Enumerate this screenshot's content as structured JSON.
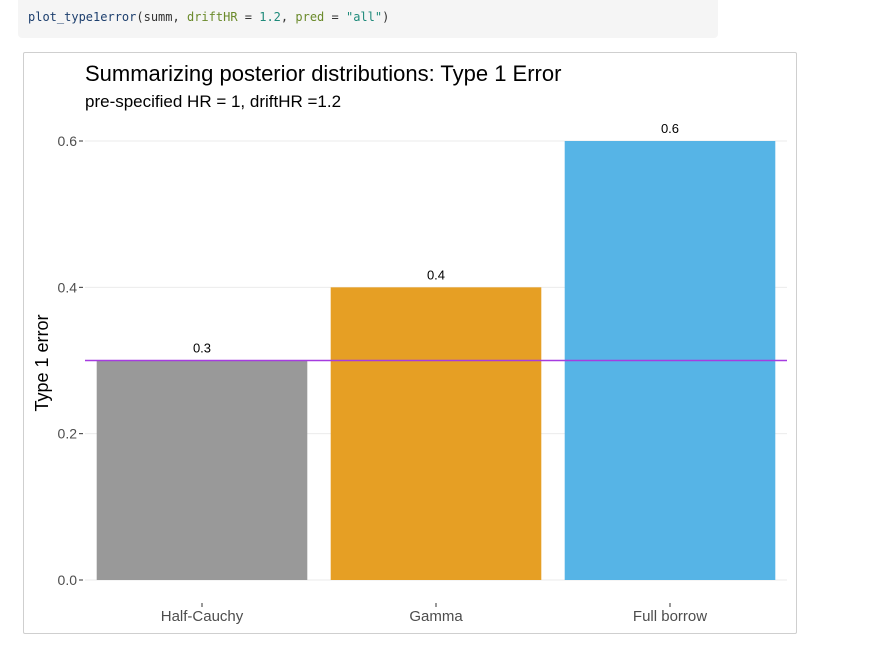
{
  "code": {
    "fn": "plot_type1error",
    "arg1": "summ",
    "arg2_name": "driftHR",
    "arg2_value": "1.2",
    "arg3_name": "pred",
    "arg3_value": "\"all\""
  },
  "chart_data": {
    "type": "bar",
    "title": "Summarizing posterior distributions: Type 1 Error",
    "subtitle": "pre-specified HR = 1, driftHR =1.2",
    "xlabel": "",
    "ylabel": "Type 1 error",
    "categories": [
      "Half-Cauchy",
      "Gamma",
      "Full borrow"
    ],
    "values": [
      0.3,
      0.4,
      0.6
    ],
    "data_labels": [
      "0.3",
      "0.4",
      "0.6"
    ],
    "colors": [
      "#999999",
      "#E69F24",
      "#56B4E6"
    ],
    "ylim": [
      0,
      0.6
    ],
    "yticks": [
      0.0,
      0.2,
      0.4,
      0.6
    ],
    "ytick_labels": [
      "0.0",
      "0.2",
      "0.4",
      "0.6"
    ],
    "reference_line": {
      "y": 0.3,
      "color": "#A63CE0"
    },
    "grid": true,
    "legend": "none"
  }
}
